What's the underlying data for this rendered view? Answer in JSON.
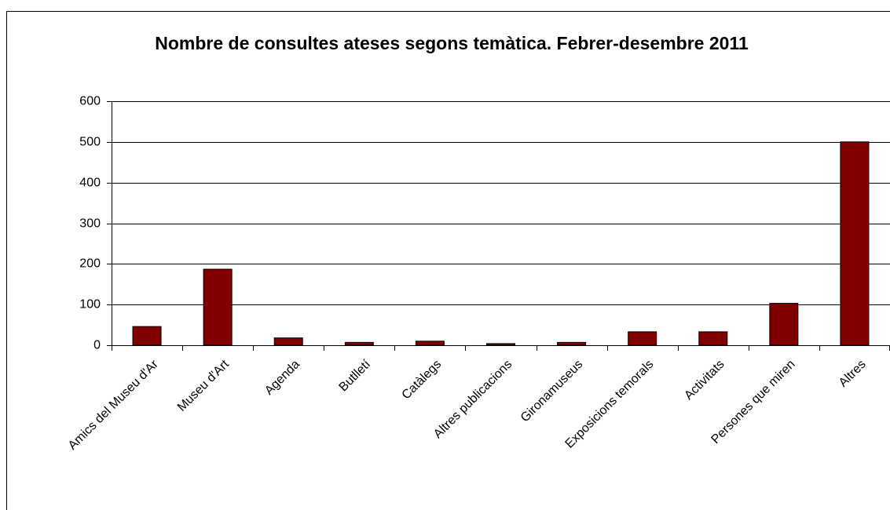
{
  "chart_data": {
    "type": "bar",
    "title": "Nombre de consultes ateses segons temàtica. Febrer-desembre 2011",
    "categories": [
      "Amics del Museu d'Ar",
      "Museu d'Art",
      "Agenda",
      "Butlletí",
      "Catàlegs",
      "Altres publicacions",
      "Gironamuseus",
      "Exposicions temorals",
      "Activitats",
      "Persones que miren",
      "Altres"
    ],
    "values": [
      46,
      187,
      18,
      7,
      10,
      4,
      7,
      33,
      33,
      103,
      500
    ],
    "color": "#800000",
    "ylim": [
      0,
      600
    ],
    "yticks": [
      0,
      100,
      200,
      300,
      400,
      500,
      600
    ],
    "grid": true
  }
}
